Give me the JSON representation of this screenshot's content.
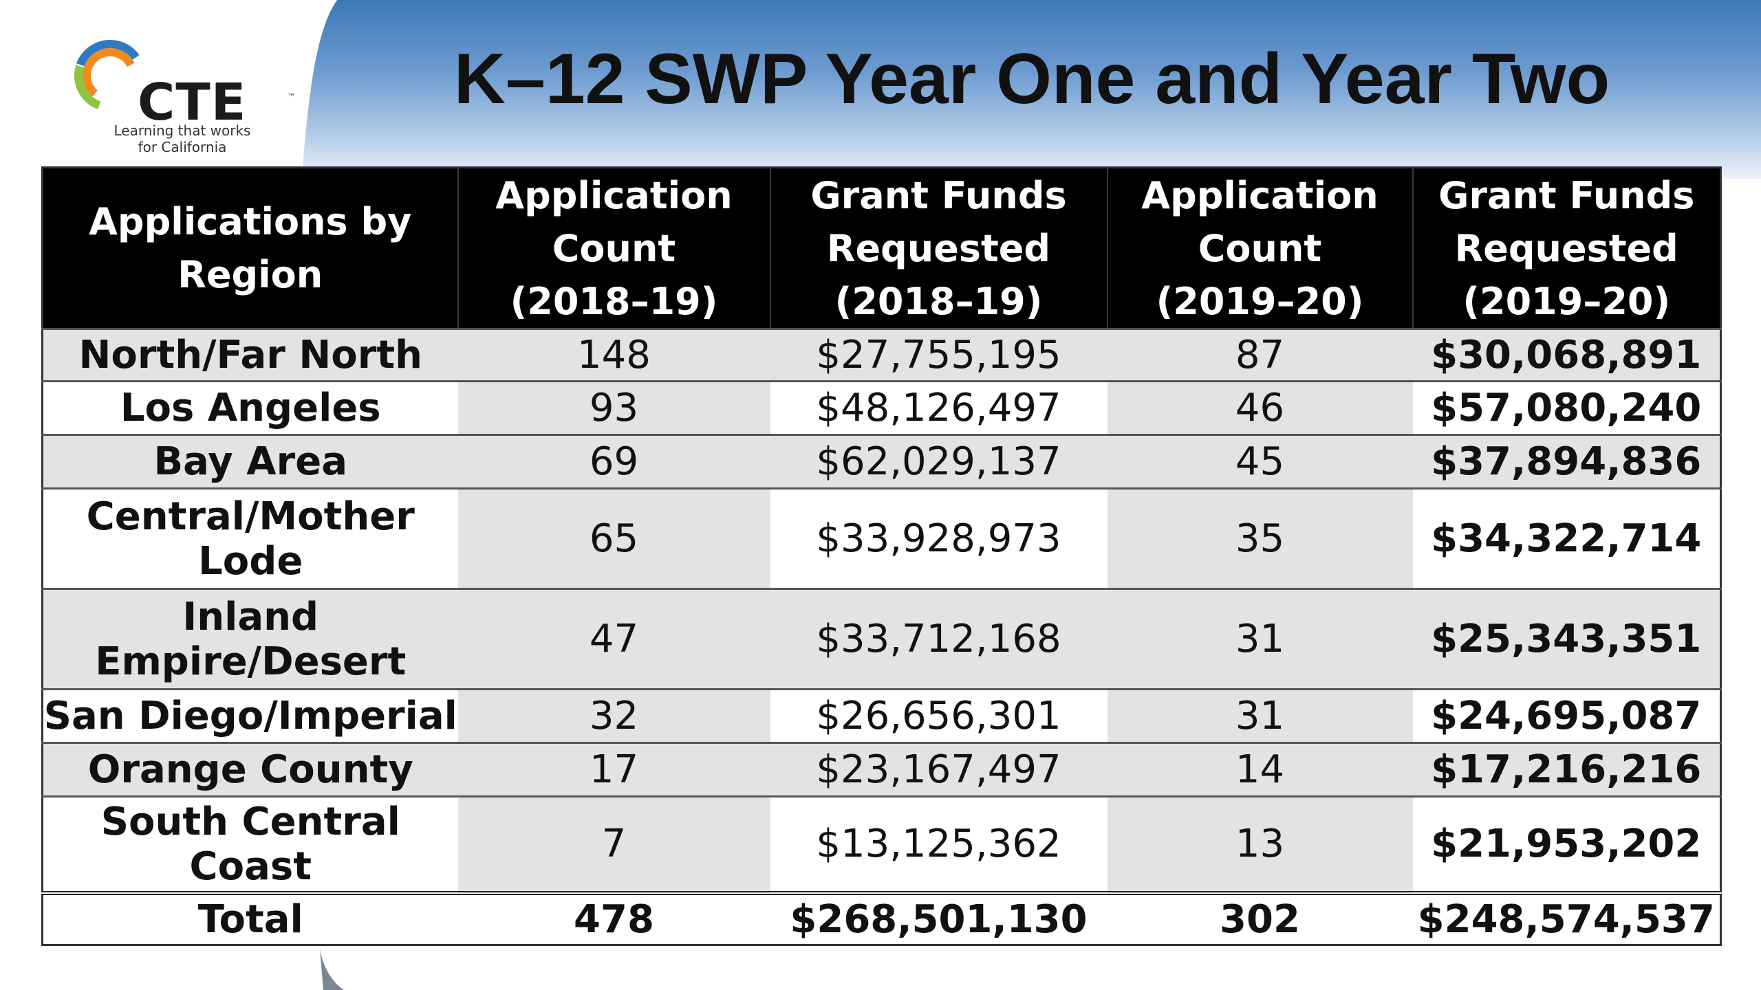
{
  "logo": {
    "wordmark": "CTE",
    "trademark": "™",
    "tagline_line1": "Learning that works",
    "tagline_line2": "for California",
    "colors": {
      "orange": "#f08a1c",
      "green": "#8cc63e",
      "blue": "#2e7bc4"
    }
  },
  "title": "K–12 SWP Year One and Year Two",
  "table": {
    "headers": [
      [
        "Applications by",
        "Region"
      ],
      [
        "Application",
        "Count",
        "(2018–19)"
      ],
      [
        "Grant Funds",
        "Requested",
        "(2018–19)"
      ],
      [
        "Application",
        "Count",
        "(2019–20)"
      ],
      [
        "Grant Funds",
        "Requested",
        "(2019–20)"
      ]
    ],
    "rows": [
      {
        "region": "North/Far North",
        "count_1819": "148",
        "funds_1819": "$27,755,195",
        "count_1920": "87",
        "funds_1920": "$30,068,891"
      },
      {
        "region": "Los Angeles",
        "count_1819": "93",
        "funds_1819": "$48,126,497",
        "count_1920": "46",
        "funds_1920": "$57,080,240"
      },
      {
        "region": "Bay Area",
        "count_1819": "69",
        "funds_1819": "$62,029,137",
        "count_1920": "45",
        "funds_1920": "$37,894,836"
      },
      {
        "region": "Central/Mother Lode",
        "count_1819": "65",
        "funds_1819": "$33,928,973",
        "count_1920": "35",
        "funds_1920": "$34,322,714"
      },
      {
        "region": "Inland Empire/Desert",
        "count_1819": "47",
        "funds_1819": "$33,712,168",
        "count_1920": "31",
        "funds_1920": "$25,343,351"
      },
      {
        "region": "San Diego/Imperial",
        "count_1819": "32",
        "funds_1819": "$26,656,301",
        "count_1920": "31",
        "funds_1920": "$24,695,087"
      },
      {
        "region": "Orange County",
        "count_1819": "17",
        "funds_1819": "$23,167,497",
        "count_1920": "14",
        "funds_1920": "$17,216,216"
      },
      {
        "region": "South Central Coast",
        "count_1819": "7",
        "funds_1819": "$13,125,362",
        "count_1920": "13",
        "funds_1920": "$21,953,202"
      }
    ],
    "total": {
      "label": "Total",
      "count_1819": "478",
      "funds_1819": "$268,501,130",
      "count_1920": "302",
      "funds_1920": "$248,574,537"
    }
  }
}
